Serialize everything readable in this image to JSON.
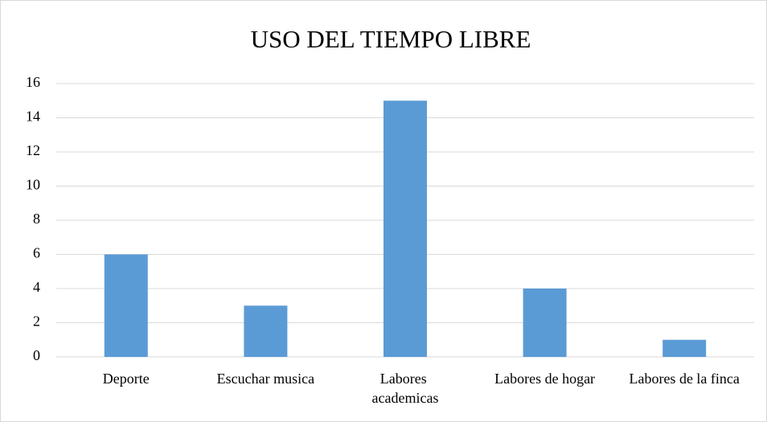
{
  "chart_data": {
    "type": "bar",
    "title": "USO DEL TIEMPO LIBRE",
    "categories": [
      "Deporte",
      "Escuchar musica",
      "Labores academicas",
      "Labores de hogar",
      "Labores de la finca"
    ],
    "values": [
      6,
      3,
      15,
      4,
      1
    ],
    "color": "#5b9bd5",
    "ylim": [
      0,
      16
    ],
    "yticks": [
      0,
      2,
      4,
      6,
      8,
      10,
      12,
      14,
      16
    ],
    "grid": true
  }
}
